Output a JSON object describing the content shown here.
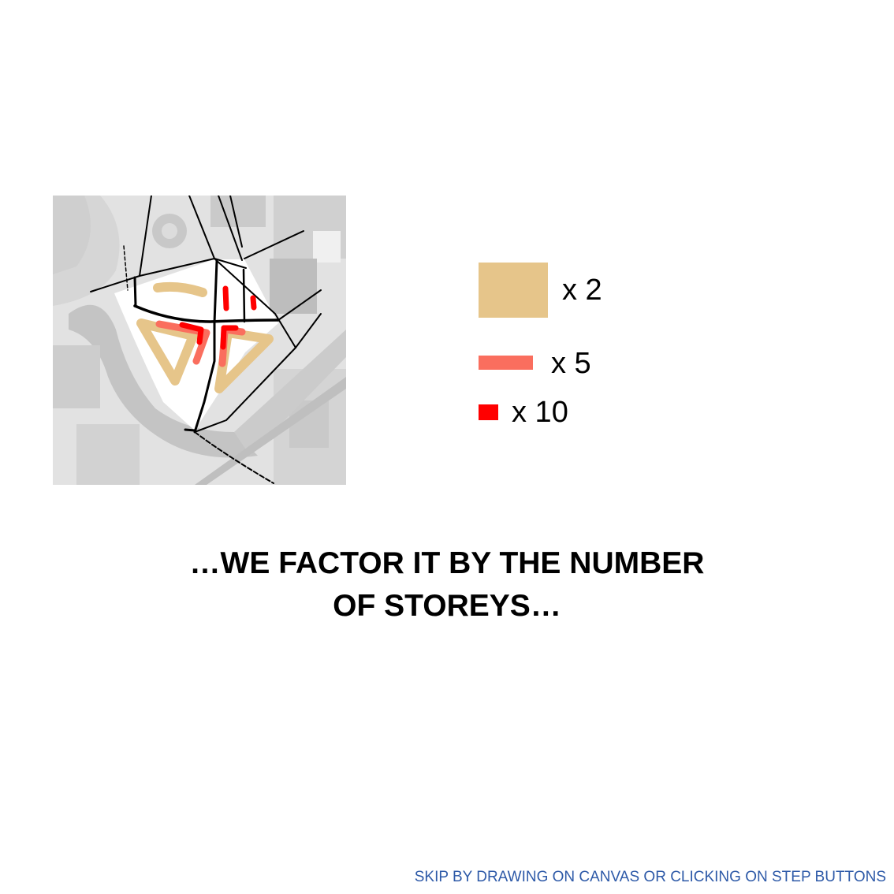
{
  "legend": {
    "items": [
      {
        "label": "x 2",
        "color": "#e6c58a"
      },
      {
        "label": "x 5",
        "color": "#fa6e5e"
      },
      {
        "label": "x 10",
        "color": "#ff0000"
      }
    ]
  },
  "headline": {
    "line1": "…WE FACTOR IT BY THE NUMBER",
    "line2": "OF STOREYS…"
  },
  "skip_link": {
    "label": "SKIP BY DRAWING ON CANVAS OR CLICKING ON STEP BUTTONS"
  },
  "colors": {
    "map_background": "#e4e4e4",
    "site_fill": "#ffffff",
    "road_line": "#000000",
    "link_color": "#2e5aa8"
  }
}
